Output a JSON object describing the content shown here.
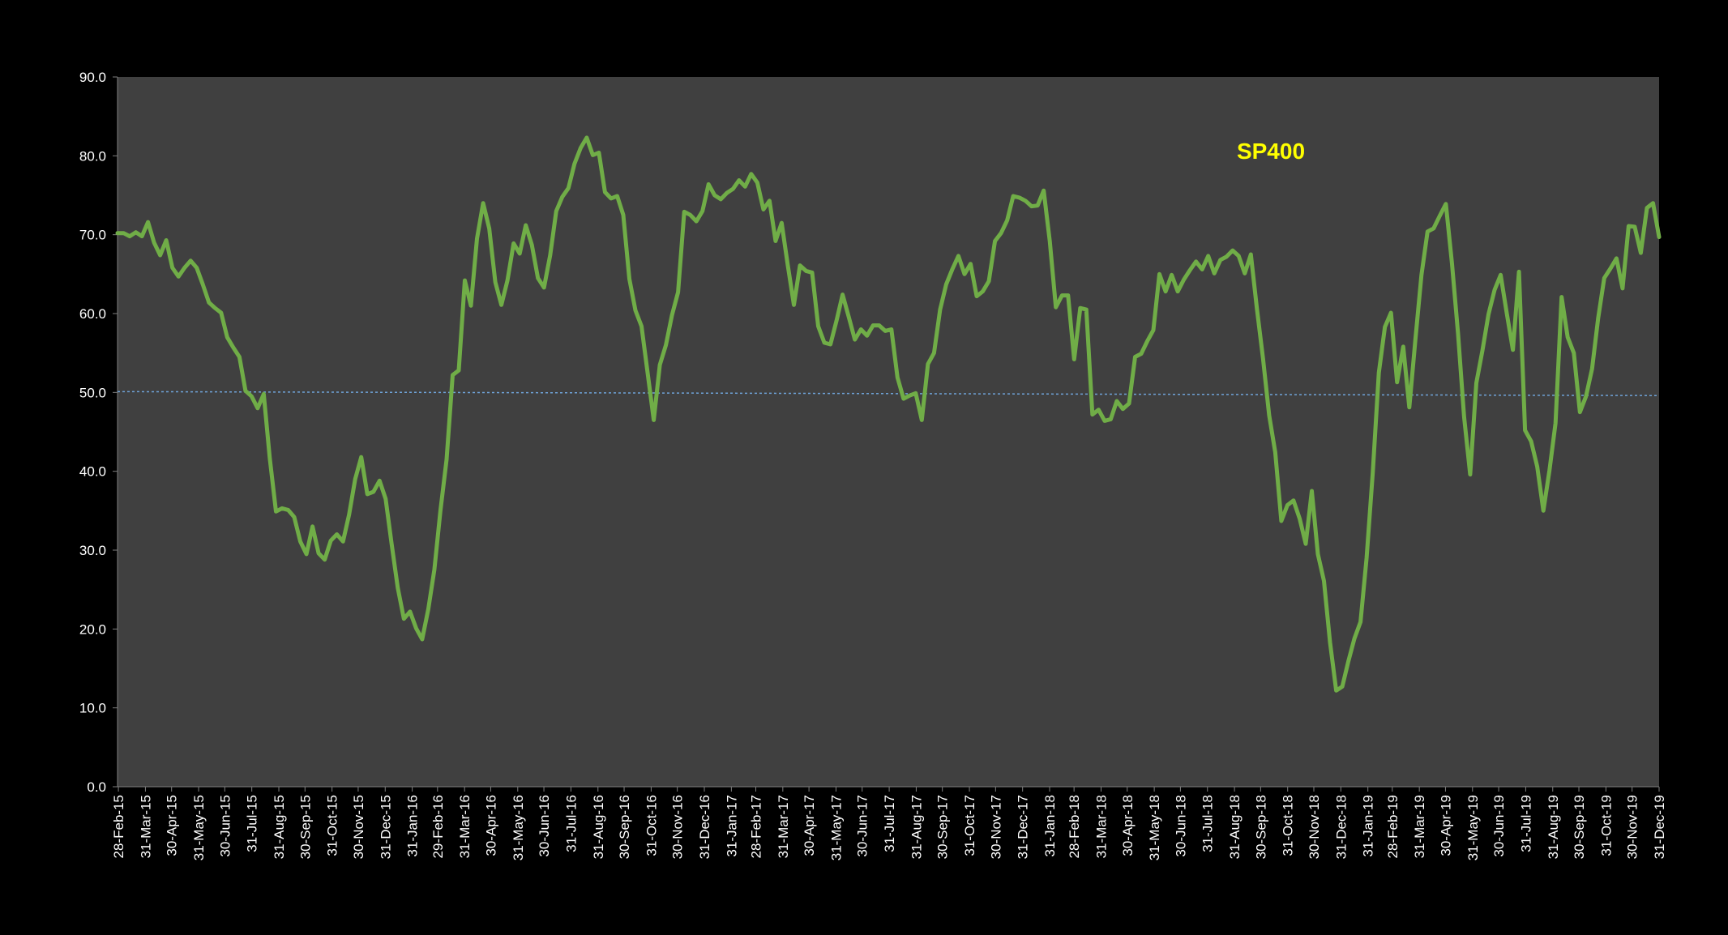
{
  "chart_data": {
    "type": "line",
    "title": "SP400",
    "xlabel": "",
    "ylabel": "",
    "ylim": [
      0,
      90
    ],
    "y_ticks": [
      "0.0",
      "10.0",
      "20.0",
      "30.0",
      "40.0",
      "50.0",
      "60.0",
      "70.0",
      "80.0",
      "90.0"
    ],
    "grid": false,
    "x_start": "2015-02-27",
    "x_end": "2019-12-31",
    "x_tick_labels": [
      "28-Feb-15",
      "31-Mar-15",
      "30-Apr-15",
      "31-May-15",
      "30-Jun-15",
      "31-Jul-15",
      "31-Aug-15",
      "30-Sep-15",
      "31-Oct-15",
      "30-Nov-15",
      "31-Dec-15",
      "31-Jan-16",
      "29-Feb-16",
      "31-Mar-16",
      "30-Apr-16",
      "31-May-16",
      "30-Jun-16",
      "31-Jul-16",
      "31-Aug-16",
      "30-Sep-16",
      "31-Oct-16",
      "30-Nov-16",
      "31-Dec-16",
      "31-Jan-17",
      "28-Feb-17",
      "31-Mar-17",
      "30-Apr-17",
      "31-May-17",
      "30-Jun-17",
      "31-Jul-17",
      "31-Aug-17",
      "30-Sep-17",
      "31-Oct-17",
      "30-Nov-17",
      "31-Dec-17",
      "31-Jan-18",
      "28-Feb-18",
      "31-Mar-18",
      "30-Apr-18",
      "31-May-18",
      "30-Jun-18",
      "31-Jul-18",
      "31-Aug-18",
      "30-Sep-18",
      "31-Oct-18",
      "30-Nov-18",
      "31-Dec-18",
      "31-Jan-19",
      "28-Feb-19",
      "31-Mar-19",
      "30-Apr-19",
      "31-May-19",
      "30-Jun-19",
      "31-Jul-19",
      "31-Aug-19",
      "30-Sep-19",
      "31-Oct-19",
      "30-Nov-19",
      "31-Dec-19"
    ],
    "series": [
      {
        "name": "",
        "color": "#70ad47",
        "values": [
          70.2,
          70.2,
          69.8,
          70.3,
          69.8,
          71.6,
          69.0,
          67.4,
          69.3,
          65.8,
          64.7,
          65.8,
          66.7,
          65.8,
          63.7,
          61.4,
          60.7,
          60.1,
          57.0,
          55.7,
          54.5,
          50.2,
          49.5,
          48.0,
          49.8,
          41.6,
          34.9,
          35.3,
          35.1,
          34.2,
          31.1,
          29.5,
          33.0,
          29.6,
          28.8,
          31.2,
          32.0,
          31.1,
          34.5,
          39.0,
          41.8,
          37.1,
          37.4,
          38.8,
          36.5,
          30.7,
          25.2,
          21.3,
          22.2,
          20.1,
          18.7,
          22.5,
          27.5,
          35.0,
          41.5,
          52.2,
          52.8,
          64.2,
          61.0,
          69.5,
          74.0,
          70.8,
          64.0,
          61.1,
          64.2,
          68.9,
          67.6,
          71.2,
          68.7,
          64.5,
          63.3,
          67.4,
          73.0,
          74.8,
          75.9,
          79.0,
          81.0,
          82.3,
          80.1,
          80.4,
          75.4,
          74.6,
          74.9,
          72.5,
          64.4,
          60.4,
          58.4,
          52.5,
          46.5,
          53.5,
          56.0,
          59.8,
          62.7,
          72.9,
          72.5,
          71.7,
          73.0,
          76.4,
          75.0,
          74.5,
          75.3,
          75.8,
          76.9,
          76.1,
          77.7,
          76.6,
          73.2,
          74.3,
          69.2,
          71.5,
          66.1,
          61.1,
          66.1,
          65.4,
          65.2,
          58.4,
          56.3,
          56.1,
          59.1,
          62.4,
          59.6,
          56.7,
          58.0,
          57.2,
          58.5,
          58.5,
          57.8,
          58.0,
          51.9,
          49.2,
          49.6,
          49.9,
          46.5,
          53.6,
          55.0,
          60.5,
          63.7,
          65.6,
          67.3,
          65.0,
          66.3,
          62.2,
          62.8,
          64.1,
          69.2,
          70.2,
          71.8,
          74.9,
          74.7,
          74.3,
          73.6,
          73.7,
          75.6,
          69.2,
          60.8,
          62.3,
          62.3,
          54.2,
          60.7,
          60.5,
          47.2,
          47.8,
          46.4,
          46.6,
          48.9,
          47.9,
          48.6,
          54.5,
          54.9,
          56.5,
          57.9,
          65.0,
          62.8,
          64.9,
          62.8,
          64.3,
          65.5,
          66.6,
          65.6,
          67.3,
          65.1,
          66.8,
          67.2,
          68.0,
          67.3,
          65.1,
          67.5,
          60.6,
          54.3,
          47.1,
          42.4,
          33.7,
          35.7,
          36.3,
          34.0,
          30.8,
          37.5,
          29.5,
          26.1,
          18.3,
          12.2,
          12.7,
          15.9,
          18.8,
          20.9,
          29.0,
          39.8,
          52.5,
          58.3,
          60.1,
          51.3,
          55.8,
          48.1,
          56.7,
          64.9,
          70.4,
          70.8,
          72.4,
          73.9,
          66.4,
          57.5,
          46.9,
          39.6,
          51.2,
          55.3,
          59.9,
          63.0,
          64.9,
          60.0,
          55.4,
          65.3,
          45.2,
          43.8,
          40.6,
          35.0,
          40.1,
          46.1,
          62.1,
          57.0,
          55.0,
          47.5,
          49.5,
          53.0,
          59.4,
          64.5,
          65.7,
          67.0,
          63.2,
          71.1,
          71.0,
          67.7,
          73.4,
          74.0,
          69.7
        ]
      }
    ],
    "reference_line": {
      "value_start": 50.1,
      "value_end": 49.6,
      "color": "#6fa3d8"
    }
  }
}
